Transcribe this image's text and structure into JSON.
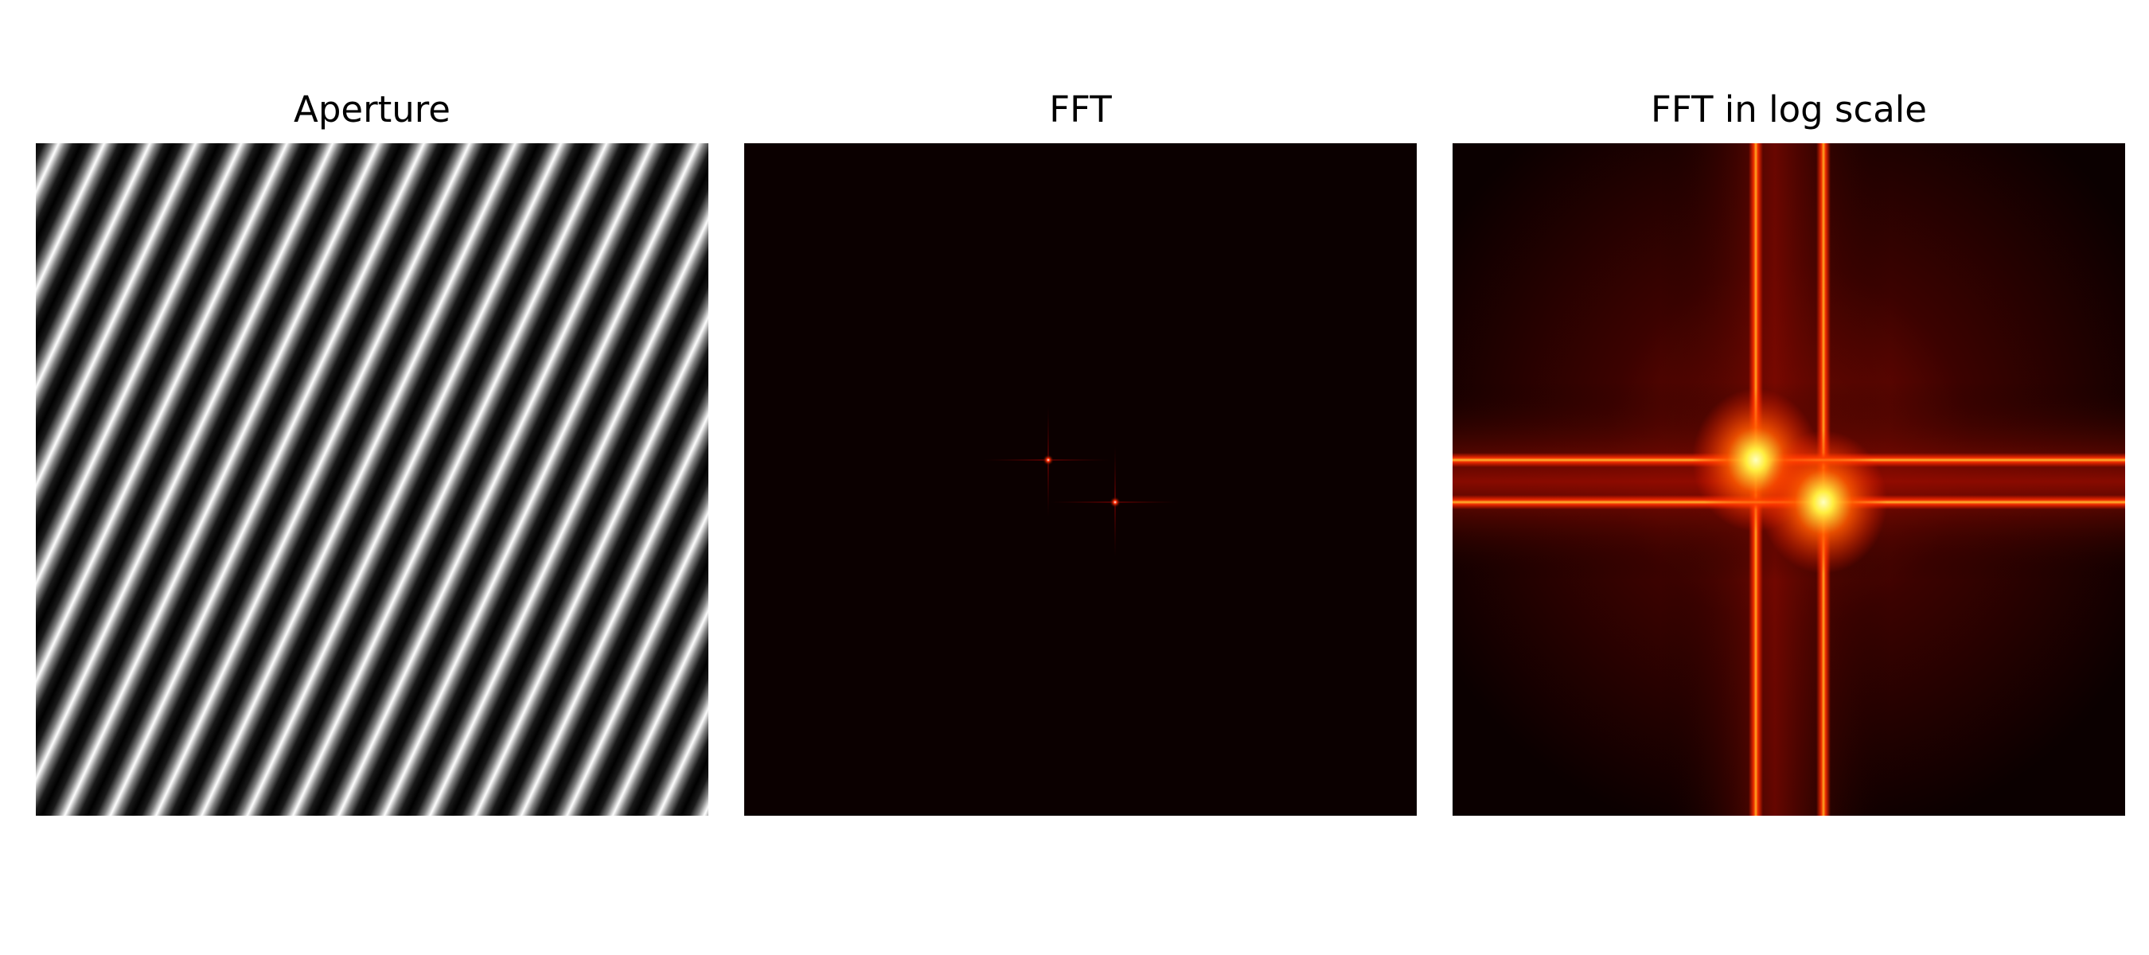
{
  "figure": {
    "panels": [
      {
        "title": "Aperture",
        "content": "diagonal sinusoidal grating (grayscale)"
      },
      {
        "title": "FFT",
        "content": "two bright points on dark background (hot colormap)"
      },
      {
        "title": "FFT in log scale",
        "content": "two crossing bright lines with glowing centers (hot colormap)"
      }
    ]
  },
  "colors": {
    "hot_dark": "#0b0000",
    "hot_red": "#ff1a00",
    "hot_yellow": "#ffff80"
  }
}
